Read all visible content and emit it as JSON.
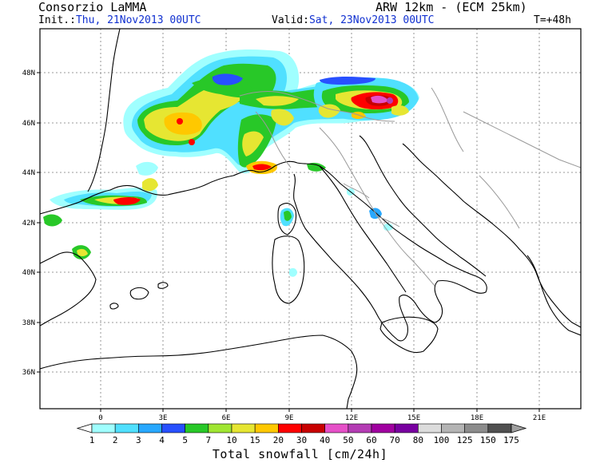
{
  "header": {
    "producer": "Consorzio LaMMA",
    "model": "ARW 12km  -  (ECM 25km)",
    "init_label": "Init.:",
    "init_value": "Thu, 21Nov2013 00UTC",
    "valid_label": "Valid:",
    "valid_value": "Sat, 23Nov2013 00UTC",
    "lead_time": "T=+48h"
  },
  "map": {
    "lat_labels": [
      "48N",
      "46N",
      "44N",
      "42N",
      "40N",
      "38N",
      "36N"
    ],
    "lon_labels": [
      "0",
      "3E",
      "6E",
      "9E",
      "12E",
      "15E",
      "18E",
      "21E"
    ],
    "coastline_color": "#000000",
    "border_color": "#9a9a9a",
    "grid_color": "#7a7a7a"
  },
  "colorbar": {
    "title": "Total snowfall [cm/24h]",
    "levels": [
      "1",
      "2",
      "3",
      "4",
      "5",
      "7",
      "10",
      "15",
      "20",
      "30",
      "40",
      "50",
      "60",
      "70",
      "80",
      "100",
      "125",
      "150",
      "175"
    ],
    "colors": [
      "#a0ffff",
      "#50e0ff",
      "#28a8ff",
      "#2850ff",
      "#28c828",
      "#a0e632",
      "#e6e632",
      "#ffc800",
      "#ff0000",
      "#c80000",
      "#e650c8",
      "#b43cb4",
      "#a000a0",
      "#7800a0",
      "#dcdcdc",
      "#b4b4b4",
      "#8c8c8c",
      "#505050"
    ]
  },
  "snow_patches": [
    {
      "region": "western Alps",
      "peak": "20-30"
    },
    {
      "region": "eastern Alps",
      "peak": "40-60"
    },
    {
      "region": "Pyrenees",
      "peak": "20-30"
    },
    {
      "region": "Corsica",
      "peak": "5-10"
    },
    {
      "region": "Apennines",
      "peak": "3-5"
    }
  ]
}
